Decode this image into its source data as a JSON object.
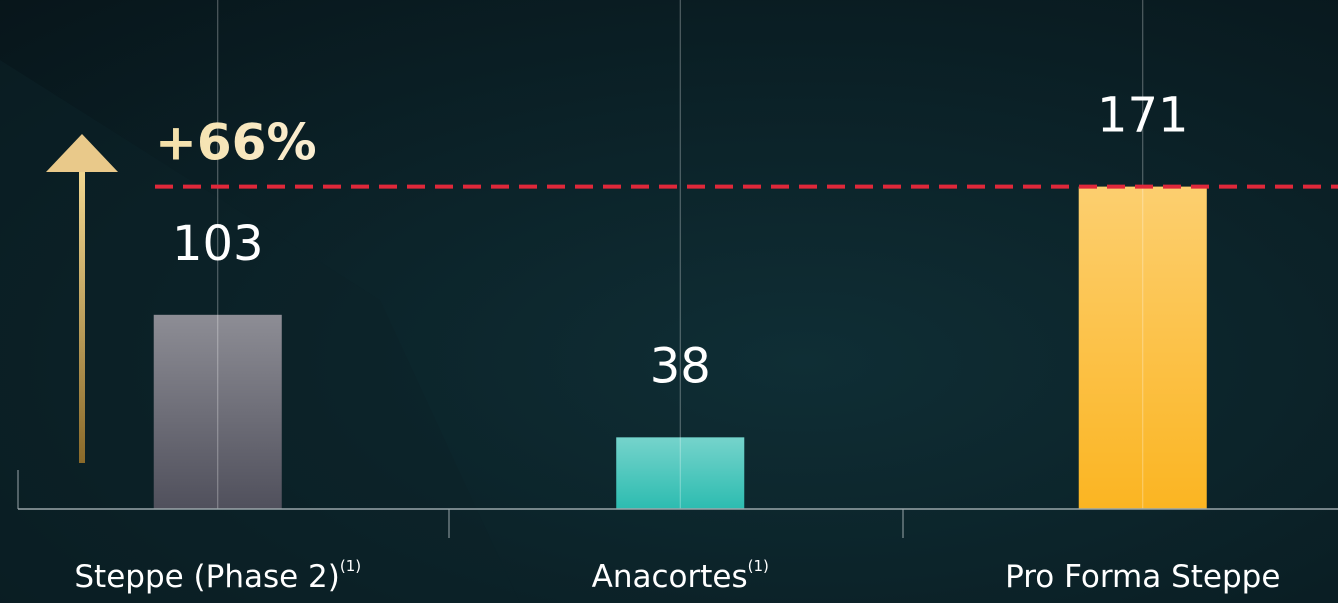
{
  "chart_data": {
    "type": "bar",
    "categories": [
      "Steppe (Phase 2)",
      "Anacortes",
      "Pro Forma Steppe"
    ],
    "category_notes": [
      "(1)",
      "(1)",
      null
    ],
    "values": [
      103,
      38,
      171
    ],
    "colors": [
      "#50505c",
      "#2cbcb0",
      "#fbb522"
    ],
    "annotation": "+66%",
    "ylim": [
      0,
      270
    ]
  }
}
